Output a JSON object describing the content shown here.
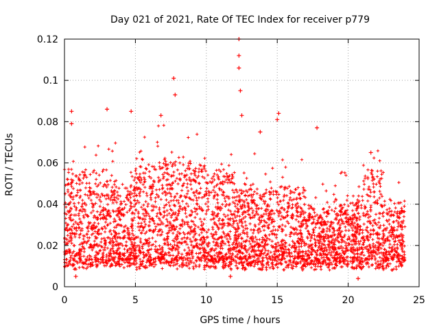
{
  "chart_data": {
    "type": "scatter",
    "title": "Day 021 of 2021, Rate Of TEC Index for receiver p779",
    "xlabel": "GPS time / hours",
    "ylabel": "ROTI / TECUs",
    "xlim": [
      0,
      25
    ],
    "ylim": [
      0,
      0.12
    ],
    "xticks": [
      0,
      5,
      10,
      15,
      20,
      25
    ],
    "yticks": [
      0,
      0.02,
      0.04,
      0.06,
      0.08,
      0.1,
      0.12
    ],
    "grid": true,
    "marker": "+",
    "series": [
      {
        "name": "ROTI",
        "color": "#ff0000",
        "x_range": [
          0,
          24
        ],
        "typical_band": [
          0.01,
          0.045
        ],
        "notable_points": [
          {
            "x": 0.5,
            "y": 0.085
          },
          {
            "x": 0.5,
            "y": 0.079
          },
          {
            "x": 3.0,
            "y": 0.086
          },
          {
            "x": 4.7,
            "y": 0.085
          },
          {
            "x": 6.8,
            "y": 0.083
          },
          {
            "x": 7.7,
            "y": 0.101
          },
          {
            "x": 7.8,
            "y": 0.093
          },
          {
            "x": 12.3,
            "y": 0.12
          },
          {
            "x": 12.3,
            "y": 0.112
          },
          {
            "x": 12.3,
            "y": 0.106
          },
          {
            "x": 12.4,
            "y": 0.095
          },
          {
            "x": 12.5,
            "y": 0.083
          },
          {
            "x": 15.1,
            "y": 0.084
          },
          {
            "x": 15.0,
            "y": 0.081
          },
          {
            "x": 13.8,
            "y": 0.075
          },
          {
            "x": 17.8,
            "y": 0.077
          },
          {
            "x": 21.6,
            "y": 0.065
          },
          {
            "x": 0.8,
            "y": 0.005
          },
          {
            "x": 11.7,
            "y": 0.005
          },
          {
            "x": 20.7,
            "y": 0.004
          }
        ]
      }
    ]
  }
}
